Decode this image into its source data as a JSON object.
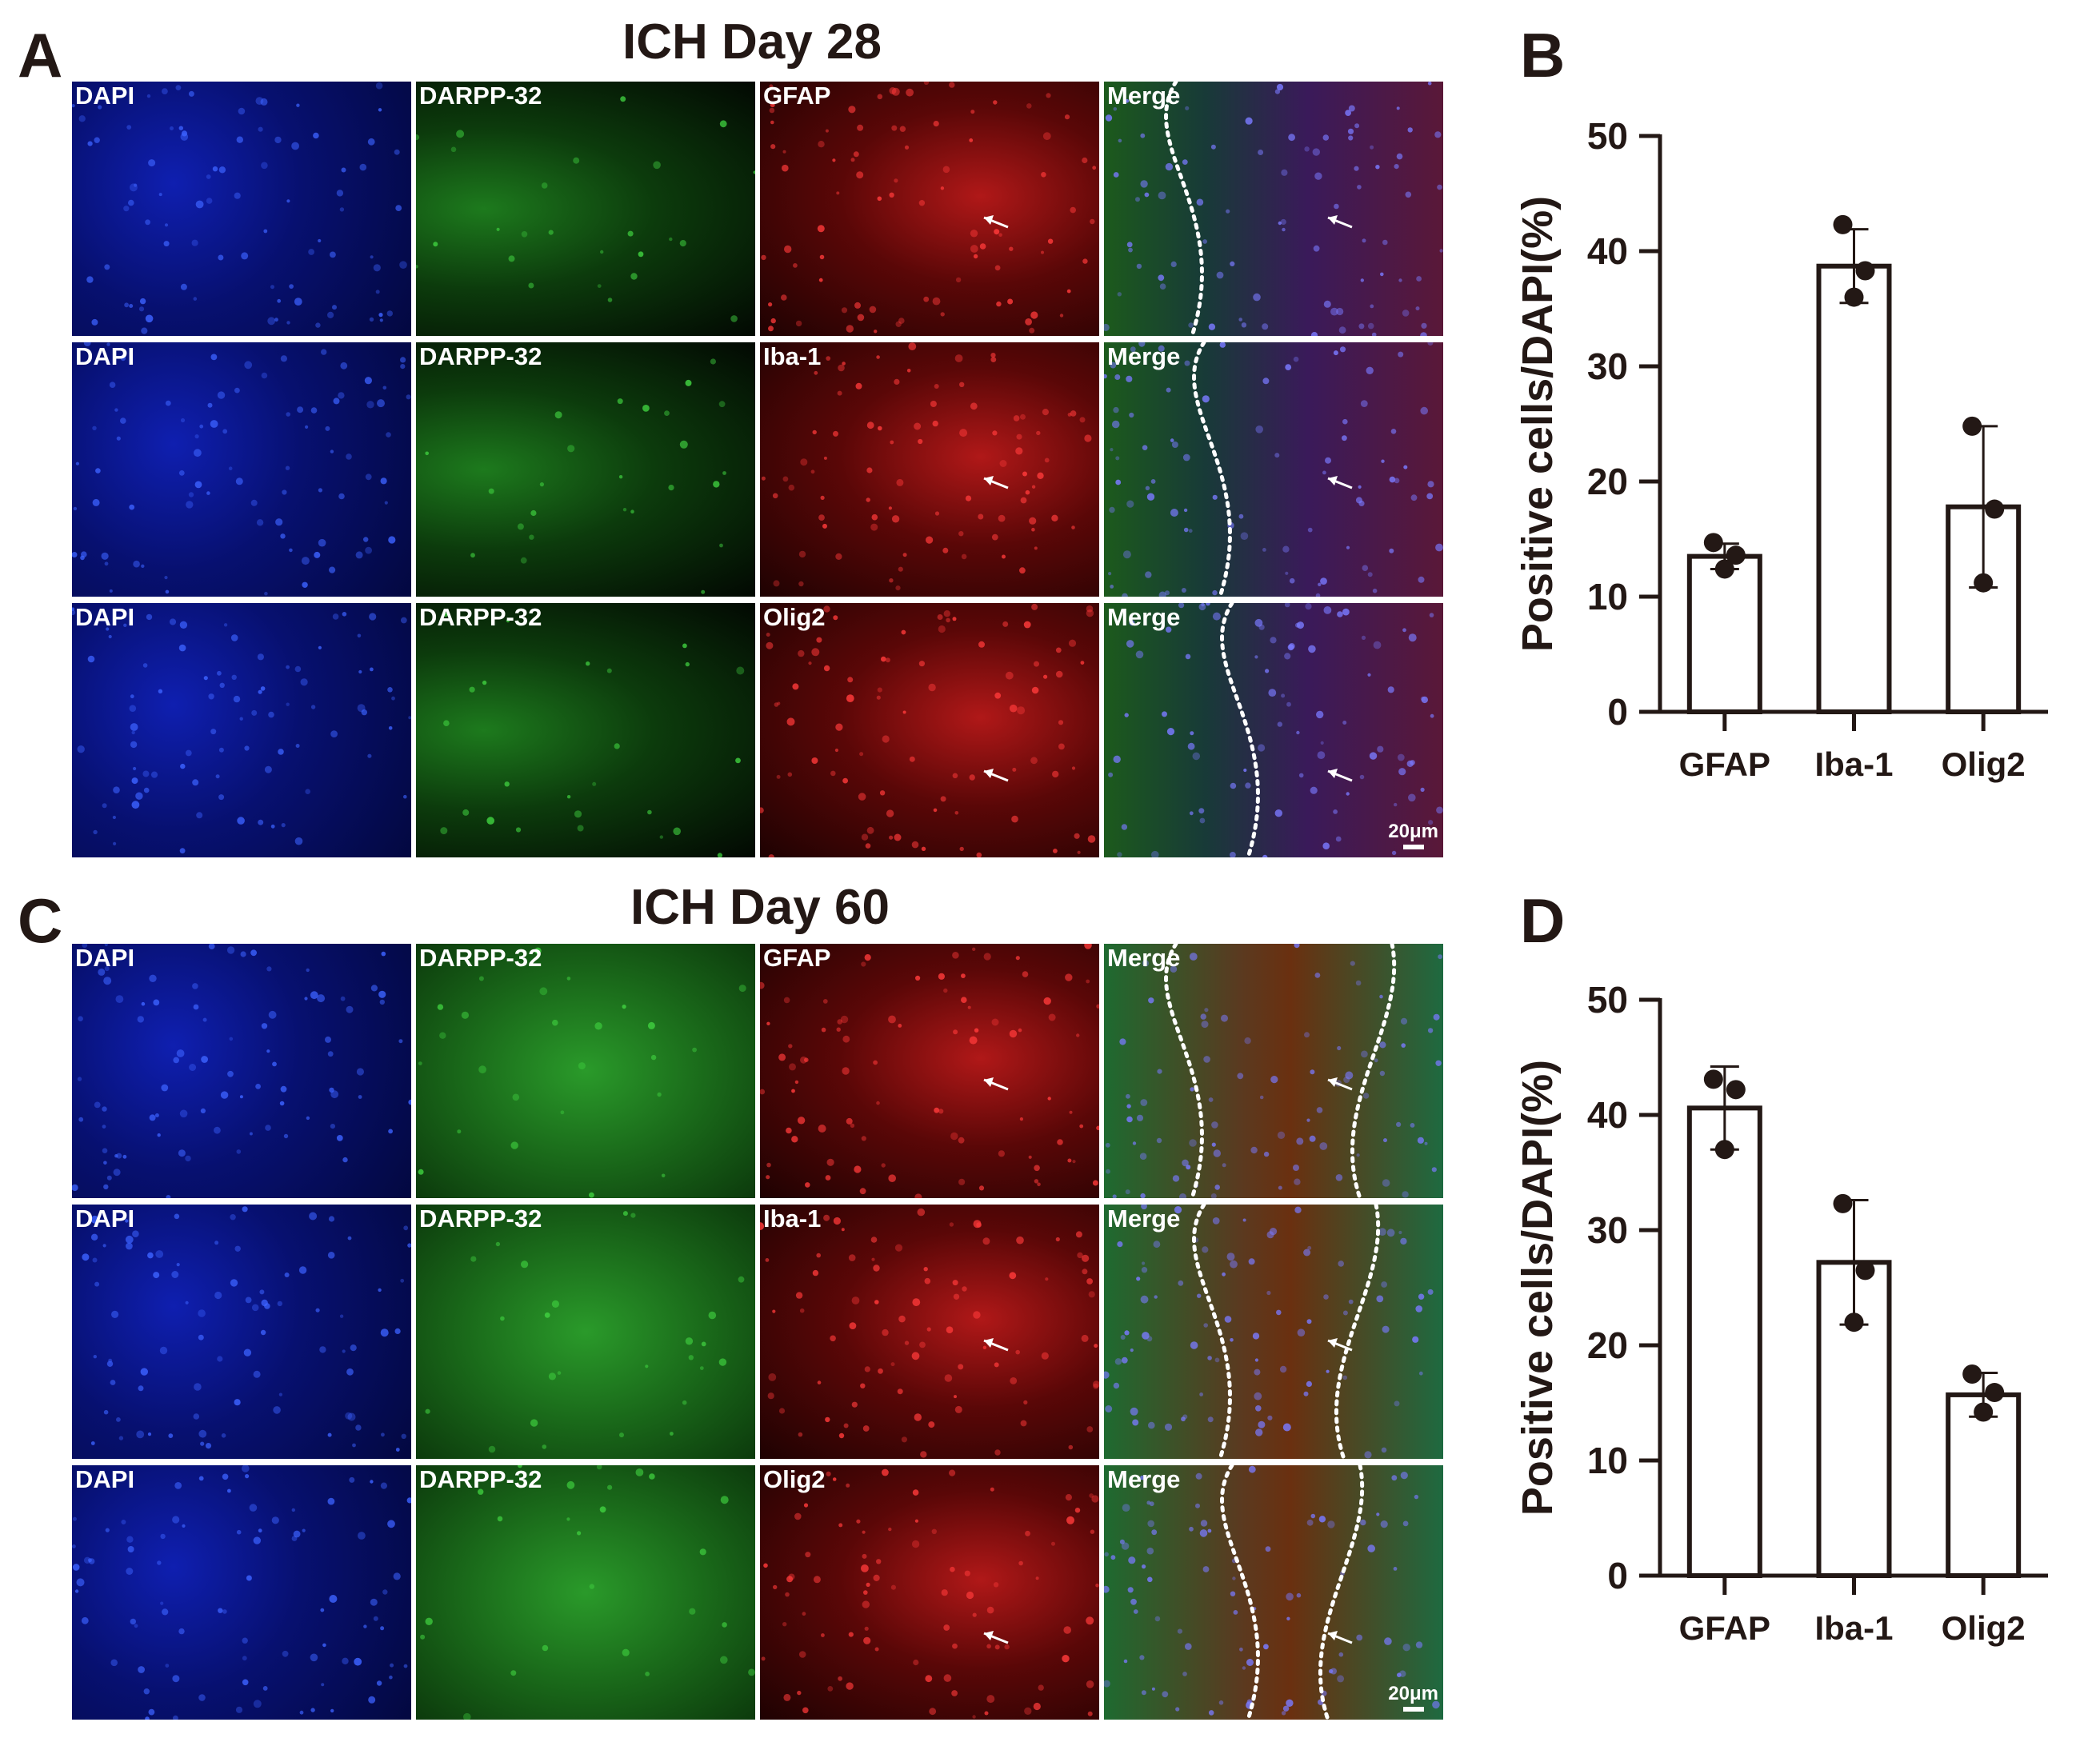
{
  "figure": {
    "panel_a": {
      "letter": "A",
      "title": "ICH Day 28"
    },
    "panel_b": {
      "letter": "B"
    },
    "panel_c": {
      "letter": "C",
      "title": "ICH Day 60"
    },
    "panel_d": {
      "letter": "D"
    },
    "scale_bar": "20μm",
    "grid_a": [
      [
        "DAPI",
        "DARPP-32",
        "GFAP",
        "Merge"
      ],
      [
        "DAPI",
        "DARPP-32",
        "Iba-1",
        "Merge"
      ],
      [
        "DAPI",
        "DARPP-32",
        "Olig2",
        "Merge"
      ]
    ],
    "grid_c": [
      [
        "DAPI",
        "DARPP-32",
        "GFAP",
        "Merge"
      ],
      [
        "DAPI",
        "DARPP-32",
        "Iba-1",
        "Merge"
      ],
      [
        "DAPI",
        "DARPP-32",
        "Olig2",
        "Merge"
      ]
    ]
  },
  "chart_data": [
    {
      "panel": "B",
      "type": "bar",
      "categories": [
        "GFAP",
        "Iba-1",
        "Olig2"
      ],
      "values": [
        13.5,
        38.7,
        17.8
      ],
      "error": [
        1.1,
        3.2,
        7.0
      ],
      "points": [
        [
          14.7,
          13.6,
          12.4
        ],
        [
          42.3,
          38.3,
          36.0
        ],
        [
          24.8,
          17.6,
          11.2
        ]
      ],
      "ylabel": "Positive cells/DAPI(%)",
      "ylim": [
        0,
        50
      ],
      "yticks": [
        0,
        10,
        20,
        30,
        40,
        50
      ]
    },
    {
      "panel": "D",
      "type": "bar",
      "categories": [
        "GFAP",
        "Iba-1",
        "Olig2"
      ],
      "values": [
        40.6,
        27.2,
        15.7
      ],
      "error": [
        3.6,
        5.4,
        1.9
      ],
      "points": [
        [
          43.1,
          42.2,
          37.0
        ],
        [
          32.3,
          26.5,
          22.0
        ],
        [
          17.5,
          15.9,
          14.2
        ]
      ],
      "ylabel": "Positive cells/DAPI(%)",
      "ylim": [
        0,
        50
      ],
      "yticks": [
        0,
        10,
        20,
        30,
        40,
        50
      ]
    }
  ]
}
